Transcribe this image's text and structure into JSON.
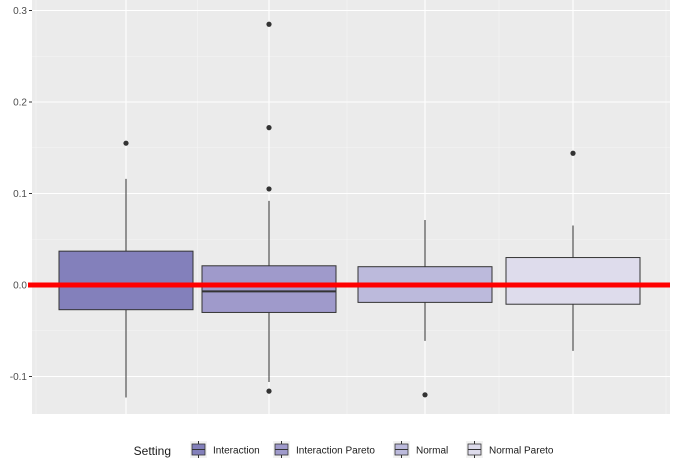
{
  "chart_data": {
    "type": "boxplot",
    "ylim": [
      -0.14,
      0.305
    ],
    "yticks": [
      {
        "value": 0.3,
        "label": "0.3"
      },
      {
        "value": 0.2,
        "label": "0.2"
      },
      {
        "value": 0.1,
        "label": "0.1"
      },
      {
        "value": 0.0,
        "label": "0.0"
      },
      {
        "value": -0.1,
        "label": "-0.1"
      }
    ],
    "grid": true,
    "reference_line": {
      "y": 0,
      "color": "#ff0000"
    },
    "legend": {
      "title": "Setting",
      "position": "bottom",
      "entries": [
        "Interaction",
        "Interaction Pareto",
        "Normal",
        "Normal Pareto"
      ]
    },
    "series": [
      {
        "name": "Interaction",
        "color": "#8380bb",
        "whisker_low": -0.123,
        "q1": -0.027,
        "median": 0.0,
        "q3": 0.037,
        "whisker_high": 0.116,
        "outliers": [
          0.155
        ]
      },
      {
        "name": "Interaction Pareto",
        "color": "#9f9acb",
        "whisker_low": -0.106,
        "q1": -0.03,
        "median": -0.007,
        "q3": 0.021,
        "whisker_high": 0.092,
        "outliers": [
          0.285,
          0.172,
          0.105,
          -0.116
        ]
      },
      {
        "name": "Normal",
        "color": "#bcbadc",
        "whisker_low": -0.061,
        "q1": -0.019,
        "median": 0.0,
        "q3": 0.02,
        "whisker_high": 0.071,
        "outliers": [
          -0.12
        ]
      },
      {
        "name": "Normal Pareto",
        "color": "#dedcec",
        "whisker_low": -0.072,
        "q1": -0.021,
        "median": 0.0,
        "q3": 0.03,
        "whisker_high": 0.065,
        "outliers": [
          0.144
        ]
      }
    ]
  }
}
